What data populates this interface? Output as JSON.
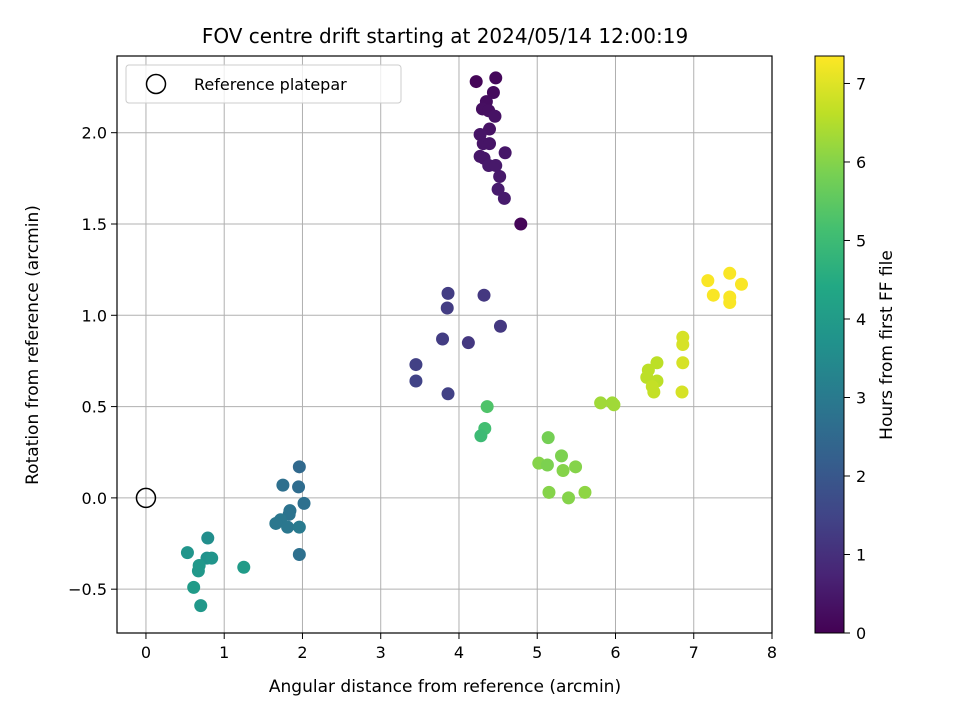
{
  "chart_data": {
    "type": "scatter",
    "title": "FOV centre drift starting at 2024/05/14 12:00:19",
    "xlabel": "Angular distance from reference (arcmin)",
    "ylabel": "Rotation from reference (arcmin)",
    "xlim": [
      -0.37,
      8.0
    ],
    "ylim": [
      -0.74,
      2.42
    ],
    "xticks": [
      0,
      1,
      2,
      3,
      4,
      5,
      6,
      7,
      8
    ],
    "yticks": [
      -0.5,
      0.0,
      0.5,
      1.0,
      1.5,
      2.0
    ],
    "xtick_labels": [
      "0",
      "1",
      "2",
      "3",
      "4",
      "5",
      "6",
      "7",
      "8"
    ],
    "ytick_labels": [
      "−0.5",
      "0.0",
      "0.5",
      "1.0",
      "1.5",
      "2.0"
    ],
    "grid": true,
    "legend": {
      "position": "top-left",
      "entries": [
        "Reference platepar"
      ]
    },
    "reference_point": {
      "x": 0,
      "y": 0
    },
    "colorbar": {
      "label": "Hours from first FF file",
      "colormap": "viridis",
      "range": [
        0,
        7.35
      ],
      "ticks": [
        0,
        1,
        2,
        3,
        4,
        5,
        6,
        7
      ],
      "tick_labels": [
        "0",
        "1",
        "2",
        "3",
        "4",
        "5",
        "6",
        "7"
      ]
    },
    "points": [
      {
        "x": 4.22,
        "y": 2.28,
        "h": 0.1
      },
      {
        "x": 4.47,
        "y": 2.3,
        "h": 0.15
      },
      {
        "x": 4.44,
        "y": 2.22,
        "h": 0.2
      },
      {
        "x": 4.35,
        "y": 2.17,
        "h": 0.25
      },
      {
        "x": 4.3,
        "y": 2.13,
        "h": 0.3
      },
      {
        "x": 4.38,
        "y": 2.12,
        "h": 0.3
      },
      {
        "x": 4.46,
        "y": 2.09,
        "h": 0.35
      },
      {
        "x": 4.39,
        "y": 2.02,
        "h": 0.35
      },
      {
        "x": 4.27,
        "y": 1.99,
        "h": 0.4
      },
      {
        "x": 4.31,
        "y": 1.94,
        "h": 0.4
      },
      {
        "x": 4.39,
        "y": 1.94,
        "h": 0.4
      },
      {
        "x": 4.59,
        "y": 1.89,
        "h": 0.45
      },
      {
        "x": 4.27,
        "y": 1.87,
        "h": 0.45
      },
      {
        "x": 4.32,
        "y": 1.86,
        "h": 0.45
      },
      {
        "x": 4.38,
        "y": 1.82,
        "h": 0.5
      },
      {
        "x": 4.47,
        "y": 1.82,
        "h": 0.5
      },
      {
        "x": 4.52,
        "y": 1.76,
        "h": 0.5
      },
      {
        "x": 4.5,
        "y": 1.69,
        "h": 0.55
      },
      {
        "x": 4.58,
        "y": 1.64,
        "h": 0.55
      },
      {
        "x": 4.79,
        "y": 1.5,
        "h": 0.1
      },
      {
        "x": 3.86,
        "y": 1.12,
        "h": 1.3
      },
      {
        "x": 4.32,
        "y": 1.11,
        "h": 1.2
      },
      {
        "x": 3.85,
        "y": 1.04,
        "h": 1.3
      },
      {
        "x": 4.53,
        "y": 0.94,
        "h": 1.2
      },
      {
        "x": 3.79,
        "y": 0.87,
        "h": 1.3
      },
      {
        "x": 4.12,
        "y": 0.85,
        "h": 1.2
      },
      {
        "x": 3.45,
        "y": 0.73,
        "h": 1.4
      },
      {
        "x": 3.45,
        "y": 0.64,
        "h": 1.45
      },
      {
        "x": 3.86,
        "y": 0.57,
        "h": 1.4
      },
      {
        "x": 1.96,
        "y": 0.17,
        "h": 2.5
      },
      {
        "x": 1.75,
        "y": 0.07,
        "h": 2.7
      },
      {
        "x": 1.95,
        "y": 0.06,
        "h": 2.6
      },
      {
        "x": 2.02,
        "y": -0.03,
        "h": 2.7
      },
      {
        "x": 1.84,
        "y": -0.07,
        "h": 2.8
      },
      {
        "x": 1.83,
        "y": -0.09,
        "h": 2.8
      },
      {
        "x": 1.72,
        "y": -0.12,
        "h": 2.9
      },
      {
        "x": 1.66,
        "y": -0.14,
        "h": 2.9
      },
      {
        "x": 1.81,
        "y": -0.16,
        "h": 2.9
      },
      {
        "x": 1.96,
        "y": -0.16,
        "h": 3.0
      },
      {
        "x": 1.96,
        "y": -0.31,
        "h": 2.7
      },
      {
        "x": 0.79,
        "y": -0.22,
        "h": 3.6
      },
      {
        "x": 0.53,
        "y": -0.3,
        "h": 3.8
      },
      {
        "x": 0.78,
        "y": -0.33,
        "h": 3.7
      },
      {
        "x": 0.84,
        "y": -0.33,
        "h": 3.8
      },
      {
        "x": 0.68,
        "y": -0.37,
        "h": 3.9
      },
      {
        "x": 0.67,
        "y": -0.4,
        "h": 3.9
      },
      {
        "x": 1.25,
        "y": -0.38,
        "h": 4.0
      },
      {
        "x": 0.61,
        "y": -0.49,
        "h": 4.0
      },
      {
        "x": 0.7,
        "y": -0.59,
        "h": 3.9
      },
      {
        "x": 4.36,
        "y": 0.5,
        "h": 5.3
      },
      {
        "x": 4.33,
        "y": 0.38,
        "h": 5.1
      },
      {
        "x": 4.28,
        "y": 0.34,
        "h": 5.0
      },
      {
        "x": 5.14,
        "y": 0.33,
        "h": 5.8
      },
      {
        "x": 5.31,
        "y": 0.23,
        "h": 5.9
      },
      {
        "x": 5.02,
        "y": 0.19,
        "h": 6.0
      },
      {
        "x": 5.13,
        "y": 0.18,
        "h": 5.9
      },
      {
        "x": 5.49,
        "y": 0.17,
        "h": 6.0
      },
      {
        "x": 5.33,
        "y": 0.15,
        "h": 6.0
      },
      {
        "x": 5.15,
        "y": 0.03,
        "h": 6.0
      },
      {
        "x": 5.61,
        "y": 0.03,
        "h": 6.1
      },
      {
        "x": 5.4,
        "y": 0.0,
        "h": 6.0
      },
      {
        "x": 5.81,
        "y": 0.52,
        "h": 6.3
      },
      {
        "x": 5.96,
        "y": 0.52,
        "h": 6.3
      },
      {
        "x": 5.98,
        "y": 0.51,
        "h": 6.3
      },
      {
        "x": 6.53,
        "y": 0.74,
        "h": 6.6
      },
      {
        "x": 6.42,
        "y": 0.7,
        "h": 6.6
      },
      {
        "x": 6.4,
        "y": 0.66,
        "h": 6.6
      },
      {
        "x": 6.53,
        "y": 0.64,
        "h": 6.6
      },
      {
        "x": 6.47,
        "y": 0.61,
        "h": 6.7
      },
      {
        "x": 6.49,
        "y": 0.58,
        "h": 6.7
      },
      {
        "x": 6.86,
        "y": 0.88,
        "h": 6.9
      },
      {
        "x": 6.86,
        "y": 0.84,
        "h": 6.9
      },
      {
        "x": 6.86,
        "y": 0.74,
        "h": 6.9
      },
      {
        "x": 6.85,
        "y": 0.58,
        "h": 6.9
      },
      {
        "x": 7.46,
        "y": 1.23,
        "h": 7.3
      },
      {
        "x": 7.18,
        "y": 1.19,
        "h": 7.3
      },
      {
        "x": 7.61,
        "y": 1.17,
        "h": 7.3
      },
      {
        "x": 7.25,
        "y": 1.11,
        "h": 7.3
      },
      {
        "x": 7.46,
        "y": 1.1,
        "h": 7.3
      },
      {
        "x": 7.46,
        "y": 1.07,
        "h": 7.3
      }
    ]
  }
}
